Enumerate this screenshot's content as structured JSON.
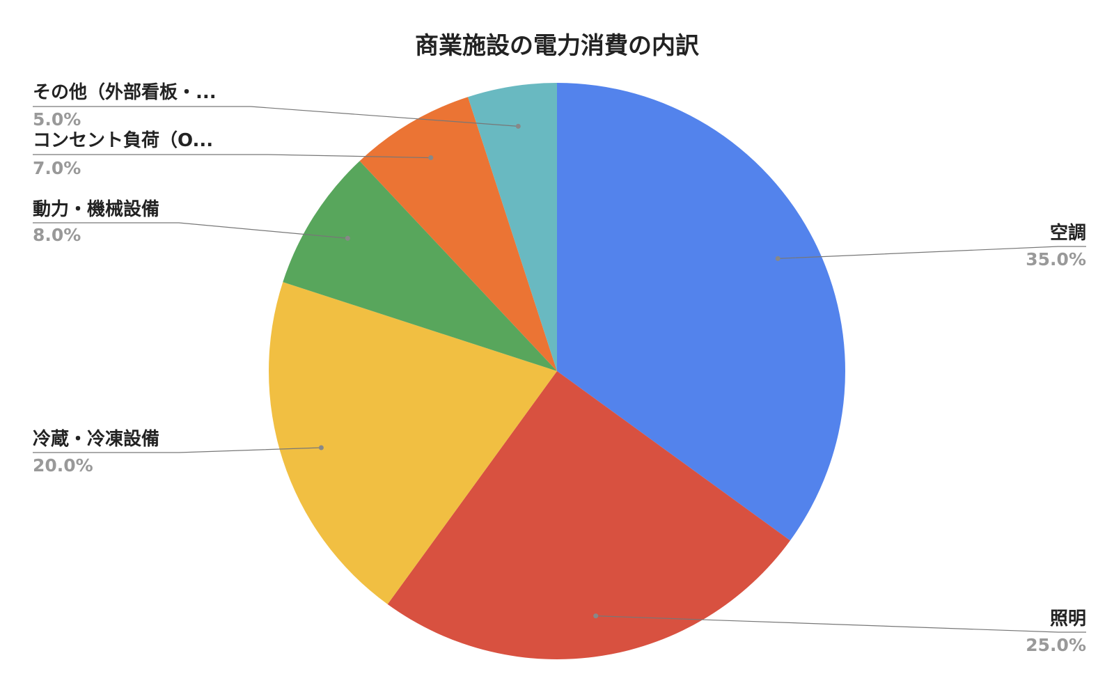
{
  "chart_data": {
    "type": "pie",
    "title": "商業施設の電力消費の内訳",
    "categories": [
      "空調",
      "照明",
      "冷蔵・冷凍設備",
      "動力・機械設備",
      "コンセント負荷（O...",
      "その他（外部看板・..."
    ],
    "values": [
      35.0,
      25.0,
      20.0,
      8.0,
      7.0,
      5.0
    ],
    "value_labels": [
      "35.0%",
      "25.0%",
      "20.0%",
      "8.0%",
      "7.0%",
      "5.0%"
    ],
    "colors": [
      "#5383EC",
      "#D85140",
      "#F1BF42",
      "#58A65C",
      "#EB7434",
      "#69B9C1"
    ],
    "label_color": "#222222",
    "pct_color": "#999999",
    "legend": "none"
  }
}
